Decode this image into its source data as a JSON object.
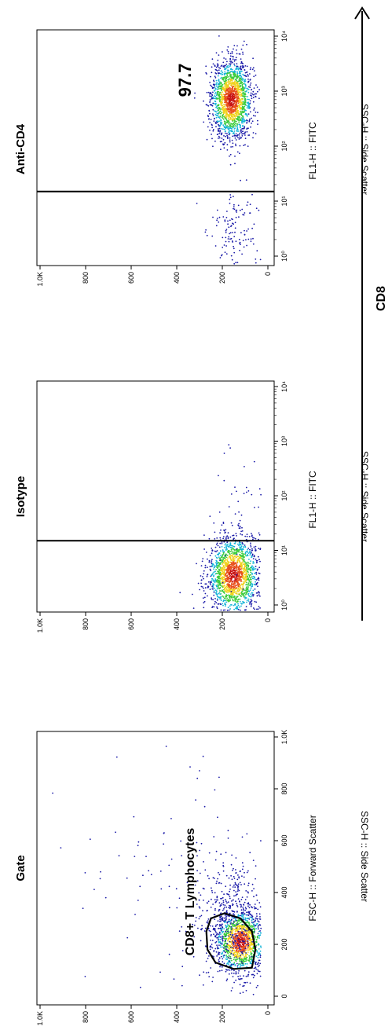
{
  "chart_data": [
    {
      "type": "scatter",
      "title": "Gate",
      "xlabel": "FSC-H :: Forward Scatter",
      "ylabel": "SSC-H :: Side Scatter",
      "xscale": "linear",
      "xlim": [
        0,
        1000
      ],
      "ylim": [
        0,
        1000
      ],
      "xticks": [
        "0",
        "200",
        "400",
        "600",
        "800",
        "1.0K"
      ],
      "yticks": [
        "0",
        "200",
        "400",
        "600",
        "800",
        "1.0K"
      ],
      "gate": {
        "label": "CD8+ T Lymphocytes",
        "shape": "polygon",
        "points": [
          [
            110,
            70
          ],
          [
            180,
            55
          ],
          [
            250,
            70
          ],
          [
            300,
            120
          ],
          [
            320,
            190
          ],
          [
            300,
            250
          ],
          [
            250,
            270
          ],
          [
            180,
            265
          ],
          [
            130,
            230
          ],
          [
            105,
            150
          ]
        ]
      },
      "populations": [
        {
          "center": [
            210,
            120
          ],
          "spread": [
            60,
            55
          ],
          "count": 1300,
          "role": "dense core"
        },
        {
          "center": [
            300,
            150
          ],
          "spread": [
            120,
            80
          ],
          "count": 500,
          "role": "halo"
        },
        {
          "center": [
            520,
            420
          ],
          "spread": [
            260,
            220
          ],
          "count": 90,
          "role": "sparse events"
        }
      ],
      "grid": false
    },
    {
      "type": "scatter",
      "title": "Isotype",
      "xlabel": "FL1-H :: FITC",
      "ylabel": "SSC-H :: Side Scatter",
      "xscale": "log",
      "xlim": [
        0.5,
        10000
      ],
      "ylim": [
        0,
        1000
      ],
      "xticks": [
        "10⁰",
        "10¹",
        "10²",
        "10³",
        "10⁴"
      ],
      "yticks": [
        "0",
        "200",
        "400",
        "600",
        "800",
        "1.0K"
      ],
      "gate": {
        "shape": "vertical-line",
        "x": 15
      },
      "populations": [
        {
          "center": [
            3.5,
            150
          ],
          "spread_log10": 0.35,
          "spread_y": 55,
          "count": 1700,
          "role": "dense core"
        },
        {
          "center": [
            40,
            130
          ],
          "spread_log10": 0.6,
          "spread_y": 60,
          "count": 40,
          "role": "tail"
        }
      ],
      "grid": false
    },
    {
      "type": "scatter",
      "title": "Anti-CD4",
      "xlabel": "FL1-H :: FITC",
      "ylabel": "SSC-H :: Side Scatter",
      "xscale": "log",
      "xlim": [
        0.5,
        10000
      ],
      "ylim": [
        0,
        1000
      ],
      "xticks": [
        "10⁰",
        "10¹",
        "10²",
        "10³",
        "10⁴"
      ],
      "yticks": [
        "0",
        "200",
        "400",
        "600",
        "800",
        "1.0K"
      ],
      "gate": {
        "shape": "vertical-line",
        "x": 15
      },
      "annotation": "97.7",
      "populations": [
        {
          "center": [
            700,
            160
          ],
          "spread_log10": 0.35,
          "spread_y": 45,
          "count": 1800,
          "role": "dense core"
        },
        {
          "center": [
            3,
            130
          ],
          "spread_log10": 0.4,
          "spread_y": 55,
          "count": 130,
          "role": "negative events"
        }
      ],
      "grid": false
    }
  ],
  "cd8_label": "CD8",
  "colors": {
    "low": "#1a1aa8",
    "mid": "#14b4d8",
    "midhigh": "#3ccc3c",
    "high": "#f0d21c",
    "peak": "#e8501c",
    "core": "#c81414",
    "axis": "#000000"
  }
}
